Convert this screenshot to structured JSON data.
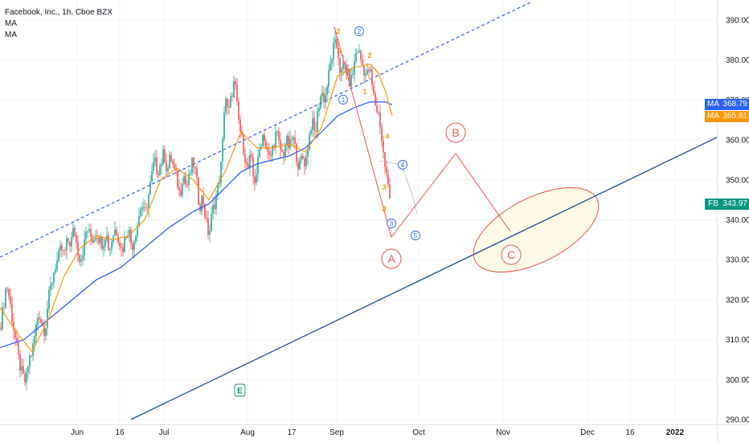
{
  "legend": {
    "symbol": "Facebook, Inc., 1h, Cboe BZX",
    "indicators": [
      "MA",
      "MA"
    ]
  },
  "badges": [
    {
      "tag": "MA",
      "value": "368.79",
      "color": "#2962ff",
      "price": 368.79
    },
    {
      "tag": "MA",
      "value": "365.81",
      "color": "#ff9800",
      "price": 365.81
    },
    {
      "tag": "FB",
      "value": "343.97",
      "color": "#089981",
      "price": 343.97
    }
  ],
  "earnings_marker": "E",
  "chart_data": {
    "type": "candlestick",
    "symbol": "FB",
    "timeframe": "1h",
    "y_axis": {
      "ticks": [
        "390.00",
        "380.00",
        "370.00",
        "360.00",
        "350.00",
        "340.00",
        "330.00",
        "320.00",
        "310.00",
        "300.00",
        "290.00"
      ],
      "range": [
        289,
        393
      ]
    },
    "x_axis": {
      "ticks": [
        "Jun",
        "16",
        "Jul",
        "Aug",
        "17",
        "Sep",
        "Oct",
        "Nov",
        "Dec",
        "16",
        "2022"
      ]
    },
    "last_price": 343.97,
    "colors": {
      "up": "#26a69a",
      "down": "#ef5350",
      "ma_fast": "#ff9800",
      "ma_slow": "#2962ff",
      "trendline": "#1e4b9e",
      "wave_count": "#ef5350",
      "wave_count_alt": "#2962ff",
      "zone": "#fffbe6"
    },
    "price_path": [
      [
        0,
        313
      ],
      [
        4,
        318
      ],
      [
        8,
        324
      ],
      [
        12,
        320
      ],
      [
        16,
        314
      ],
      [
        20,
        309
      ],
      [
        24,
        304
      ],
      [
        28,
        301
      ],
      [
        32,
        299
      ],
      [
        36,
        305
      ],
      [
        40,
        307
      ],
      [
        44,
        312
      ],
      [
        48,
        317
      ],
      [
        52,
        314
      ],
      [
        56,
        312
      ],
      [
        60,
        320
      ],
      [
        64,
        324
      ],
      [
        68,
        328
      ],
      [
        72,
        330
      ],
      [
        76,
        333
      ],
      [
        80,
        331
      ],
      [
        84,
        335
      ],
      [
        88,
        334
      ],
      [
        92,
        338
      ],
      [
        96,
        333
      ],
      [
        100,
        330
      ],
      [
        104,
        333
      ],
      [
        108,
        338
      ],
      [
        112,
        336
      ],
      [
        116,
        335
      ],
      [
        120,
        337
      ],
      [
        124,
        335
      ],
      [
        128,
        334
      ],
      [
        132,
        337
      ],
      [
        136,
        332
      ],
      [
        140,
        336
      ],
      [
        144,
        338
      ],
      [
        148,
        335
      ],
      [
        152,
        332
      ],
      [
        156,
        336
      ],
      [
        160,
        338
      ],
      [
        164,
        333
      ],
      [
        168,
        336
      ],
      [
        172,
        340
      ],
      [
        176,
        344
      ],
      [
        180,
        341
      ],
      [
        184,
        345
      ],
      [
        188,
        350
      ],
      [
        192,
        355
      ],
      [
        196,
        352
      ],
      [
        200,
        354
      ],
      [
        204,
        357
      ],
      [
        208,
        352
      ],
      [
        212,
        356
      ],
      [
        216,
        353
      ],
      [
        220,
        350
      ],
      [
        224,
        346
      ],
      [
        228,
        352
      ],
      [
        232,
        348
      ],
      [
        236,
        351
      ],
      [
        240,
        355
      ],
      [
        244,
        351
      ],
      [
        248,
        343
      ],
      [
        252,
        346
      ],
      [
        256,
        340
      ],
      [
        260,
        336
      ],
      [
        264,
        342
      ],
      [
        268,
        345
      ],
      [
        272,
        349
      ],
      [
        276,
        355
      ],
      [
        280,
        372
      ],
      [
        284,
        366
      ],
      [
        288,
        371
      ],
      [
        292,
        375
      ],
      [
        296,
        366
      ],
      [
        300,
        361
      ],
      [
        304,
        357
      ],
      [
        308,
        352
      ],
      [
        312,
        356
      ],
      [
        316,
        349
      ],
      [
        320,
        353
      ],
      [
        324,
        359
      ],
      [
        328,
        362
      ],
      [
        332,
        357
      ],
      [
        336,
        355
      ],
      [
        340,
        359
      ],
      [
        344,
        362
      ],
      [
        348,
        358
      ],
      [
        352,
        356
      ],
      [
        356,
        360
      ],
      [
        360,
        358
      ],
      [
        364,
        361
      ],
      [
        368,
        357
      ],
      [
        372,
        353
      ],
      [
        376,
        356
      ],
      [
        380,
        354
      ],
      [
        384,
        360
      ],
      [
        388,
        365
      ],
      [
        392,
        361
      ],
      [
        396,
        368
      ],
      [
        400,
        372
      ],
      [
        404,
        370
      ],
      [
        408,
        375
      ],
      [
        412,
        380
      ],
      [
        416,
        384
      ],
      [
        420,
        383
      ],
      [
        424,
        376
      ],
      [
        428,
        379
      ],
      [
        432,
        377
      ],
      [
        436,
        374
      ],
      [
        440,
        378
      ],
      [
        444,
        383
      ],
      [
        448,
        381
      ],
      [
        452,
        378
      ],
      [
        456,
        376
      ],
      [
        460,
        378
      ],
      [
        464,
        372
      ],
      [
        468,
        368
      ],
      [
        472,
        366
      ],
      [
        476,
        358
      ],
      [
        480,
        352
      ],
      [
        484,
        347
      ],
      [
        486,
        343.97
      ]
    ],
    "ma_fast": [
      [
        0,
        318
      ],
      [
        20,
        312
      ],
      [
        40,
        307
      ],
      [
        60,
        315
      ],
      [
        80,
        326
      ],
      [
        100,
        333
      ],
      [
        120,
        336
      ],
      [
        140,
        335
      ],
      [
        160,
        336
      ],
      [
        180,
        340
      ],
      [
        200,
        350
      ],
      [
        220,
        353
      ],
      [
        240,
        350
      ],
      [
        260,
        345
      ],
      [
        280,
        352
      ],
      [
        300,
        362
      ],
      [
        320,
        358
      ],
      [
        340,
        358
      ],
      [
        360,
        359
      ],
      [
        380,
        357
      ],
      [
        400,
        363
      ],
      [
        420,
        376
      ],
      [
        440,
        378
      ],
      [
        460,
        379
      ],
      [
        470,
        377
      ],
      [
        480,
        372
      ],
      [
        488,
        366
      ]
    ],
    "ma_slow": [
      [
        0,
        308
      ],
      [
        30,
        310
      ],
      [
        60,
        315
      ],
      [
        90,
        320
      ],
      [
        120,
        325
      ],
      [
        150,
        328
      ],
      [
        180,
        333
      ],
      [
        210,
        338
      ],
      [
        240,
        342
      ],
      [
        260,
        344
      ],
      [
        280,
        348
      ],
      [
        300,
        352
      ],
      [
        320,
        354
      ],
      [
        340,
        355
      ],
      [
        360,
        356
      ],
      [
        380,
        358
      ],
      [
        400,
        362
      ],
      [
        420,
        366
      ],
      [
        440,
        368
      ],
      [
        460,
        369.5
      ],
      [
        480,
        369.5
      ],
      [
        488,
        368.79
      ]
    ],
    "annotations": {
      "wave_labels": [
        "2",
        "1",
        "2",
        "1",
        "4",
        "3",
        "3",
        "A",
        "B",
        "C"
      ],
      "wave_labels_alt": [
        "2",
        "1",
        "3",
        "4",
        "5"
      ]
    }
  }
}
